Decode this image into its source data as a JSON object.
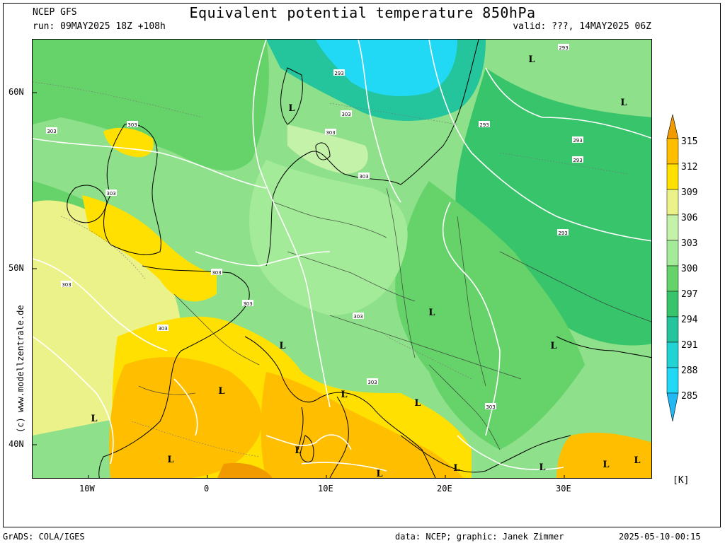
{
  "header": {
    "model": "NCEP GFS",
    "run": "run: 09MAY2025 18Z +108h",
    "title": "Equivalent potential temperature 850hPa",
    "valid": "valid: ???, 14MAY2025 06Z"
  },
  "axes": {
    "lon_labels": [
      "10W",
      "0",
      "10E",
      "20E",
      "30E"
    ],
    "lat_labels": [
      "60N",
      "50N",
      "40N"
    ]
  },
  "map_labels": {
    "isotherm_labels": [
      "293",
      "293",
      "293",
      "293",
      "293",
      "293",
      "303",
      "303",
      "303",
      "303",
      "303",
      "303",
      "303",
      "303",
      "303",
      "303",
      "303",
      "303",
      "303"
    ],
    "lows": [
      "L",
      "L",
      "L",
      "L",
      "L",
      "L",
      "L",
      "L",
      "L",
      "L",
      "L",
      "L",
      "L",
      "L",
      "L",
      "L",
      "L"
    ]
  },
  "colorbar": {
    "unit": "[K]",
    "levels": [
      "315",
      "312",
      "309",
      "306",
      "303",
      "300",
      "297",
      "294",
      "291",
      "288",
      "285"
    ],
    "colors": [
      "#f09a00",
      "#ffbf00",
      "#ffe000",
      "#ecf28a",
      "#c4f2a8",
      "#a3eb98",
      "#66d36a",
      "#38c46a",
      "#24c59c",
      "#21d3d3",
      "#21d9f4"
    ]
  },
  "footer": {
    "left": "GrADS: COLA/IGES",
    "credit": "data: NCEP; graphic: Janek Zimmer",
    "timestamp": "2025-05-10-00:15"
  },
  "watermark": "(c) www.modellzentrale.de"
}
